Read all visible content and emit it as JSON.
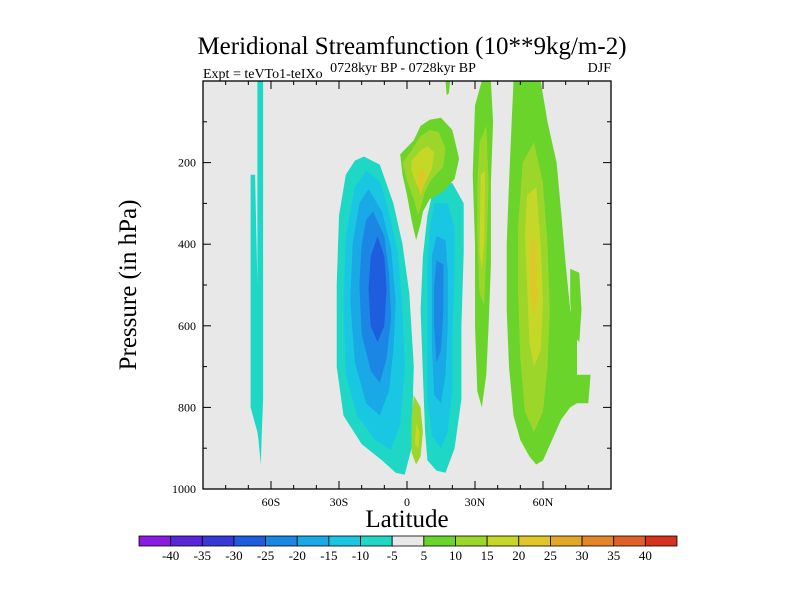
{
  "chart_data": {
    "type": "contour",
    "title": "Meridional Streamfunction (10**9kg/m-2)",
    "experiment_label": "Expt = teVTo1-teIXo",
    "period_label": "0728kyr BP - 0728kyr BP",
    "season_label": "DJF",
    "xlabel": "Latitude",
    "ylabel": "Pressure (in hPa)",
    "xlim": [
      -90,
      90
    ],
    "ylim": [
      1000,
      0
    ],
    "x_ticks": [
      {
        "value": -60,
        "label": "60S"
      },
      {
        "value": -30,
        "label": "30S"
      },
      {
        "value": 0,
        "label": "0"
      },
      {
        "value": 30,
        "label": "30N"
      },
      {
        "value": 60,
        "label": "60N"
      }
    ],
    "y_ticks": [
      {
        "value": 200,
        "label": "200"
      },
      {
        "value": 400,
        "label": "400"
      },
      {
        "value": 600,
        "label": "600"
      },
      {
        "value": 800,
        "label": "800"
      },
      {
        "value": 1000,
        "label": "1000"
      }
    ],
    "background_color": "#e8e8e8",
    "colorbar": {
      "levels": [
        -40,
        -35,
        -30,
        -25,
        -20,
        -15,
        -10,
        -5,
        5,
        10,
        15,
        20,
        25,
        30,
        35,
        40
      ],
      "colors": [
        "#8b1ae0",
        "#5a24d8",
        "#3838d6",
        "#1f5ddf",
        "#1b86e3",
        "#19a9e6",
        "#19c7e3",
        "#1ed8c5",
        "#e8e8e8",
        "#6ad42a",
        "#9cd62a",
        "#c6d827",
        "#e0c627",
        "#e3a827",
        "#e3862a",
        "#e0602a",
        "#d8321f"
      ]
    },
    "features": [
      {
        "name": "band-sh-high-lat",
        "sign": "negative",
        "color": "#1ed8c5",
        "lat_range": [
          -70,
          -63
        ],
        "p_range": [
          0,
          940
        ]
      },
      {
        "name": "cell-south-outer",
        "sign": "negative",
        "color": "#1ed8c5",
        "lat_range": [
          -30,
          2
        ],
        "p_range": [
          185,
          950
        ]
      },
      {
        "name": "cell-south-core",
        "sign": "negative",
        "min_value": -30,
        "center": [
          -12,
          500
        ]
      },
      {
        "name": "cell-north-outer",
        "sign": "negative",
        "color": "#1ed8c5",
        "lat_range": [
          5,
          25
        ],
        "p_range": [
          250,
          960
        ]
      },
      {
        "name": "cell-north-core",
        "sign": "negative",
        "min_value": -25,
        "center": [
          12,
          520
        ]
      },
      {
        "name": "upper-tropo-positive",
        "sign": "positive",
        "max_value": 15,
        "center": [
          5,
          260
        ]
      },
      {
        "name": "positive-plume-30n",
        "sign": "positive",
        "color": "#6ad42a",
        "lat_range": [
          30,
          38
        ],
        "p_range": [
          0,
          800
        ]
      },
      {
        "name": "nh-midlat-positive",
        "sign": "positive",
        "max_value": 15,
        "lat_range": [
          42,
          80
        ],
        "p_range": [
          0,
          950
        ]
      },
      {
        "name": "sh-equator-small-positive",
        "sign": "positive",
        "color": "#9cd62a",
        "center": [
          5,
          880
        ]
      }
    ]
  }
}
